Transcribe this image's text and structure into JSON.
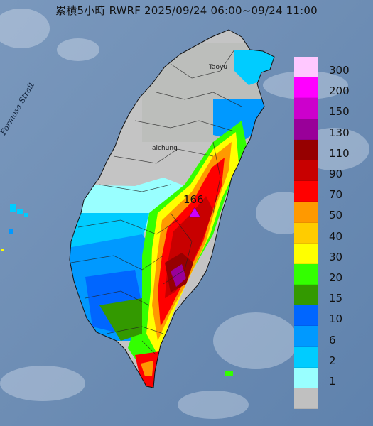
{
  "title": "累積5小時 RWRF 2025/09/24 06:00~09/24 11:00",
  "strait_label": "Formosa Strait",
  "cities": {
    "taoyuan": "Taoyu",
    "taichung": "aichung"
  },
  "peak": {
    "value": "166",
    "marker": "purple-triangle"
  },
  "legend": [
    {
      "label": "300",
      "color": "#ffc8ff"
    },
    {
      "label": "200",
      "color": "#ff00ff"
    },
    {
      "label": "150",
      "color": "#cc00cc"
    },
    {
      "label": "130",
      "color": "#990099"
    },
    {
      "label": "110",
      "color": "#960000"
    },
    {
      "label": "90",
      "color": "#c80000"
    },
    {
      "label": "70",
      "color": "#ff0000"
    },
    {
      "label": "50",
      "color": "#ff9900"
    },
    {
      "label": "40",
      "color": "#ffcc00"
    },
    {
      "label": "30",
      "color": "#ffff00"
    },
    {
      "label": "20",
      "color": "#33ff00"
    },
    {
      "label": "15",
      "color": "#339900"
    },
    {
      "label": "10",
      "color": "#0066ff"
    },
    {
      "label": "6",
      "color": "#0099ff"
    },
    {
      "label": "2",
      "color": "#00ccff"
    },
    {
      "label": "1",
      "color": "#99ffff"
    },
    {
      "label": "",
      "color": "#c0c0c0"
    }
  ],
  "colors": {
    "sea": "#6f8fb3",
    "land_dry": "#c4c4c4"
  }
}
